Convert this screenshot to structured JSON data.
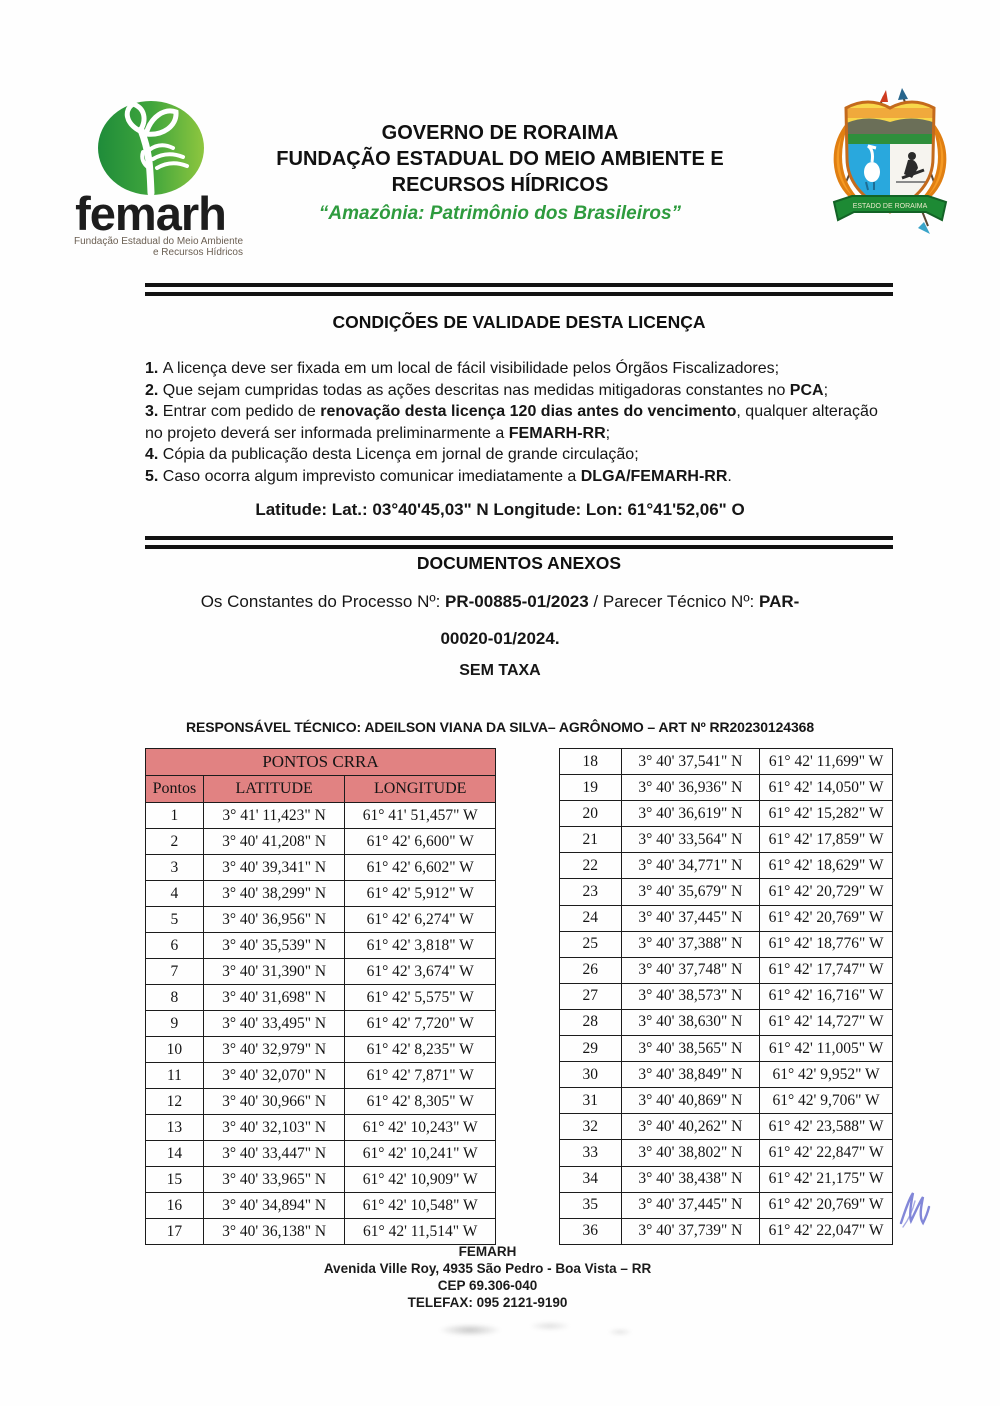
{
  "header": {
    "logo": {
      "wordmark": "femarh",
      "subtitle_line1": "Fundação Estadual do Meio Ambiente",
      "subtitle_line2": "e Recursos Hídricos"
    },
    "org_lines": {
      "line1": "GOVERNO DE RORAIMA",
      "line2": "FUNDAÇÃO ESTADUAL DO MEIO AMBIENTE E",
      "line3": "RECURSOS HÍDRICOS"
    },
    "motto": "“Amazônia: Patrimônio dos Brasileiros”",
    "coat_of_arms_banner": "ESTADO DE RORAIMA"
  },
  "conditions": {
    "title": "CONDIÇÕES DE VALIDADE DESTA LICENÇA",
    "items": [
      {
        "num": "1.",
        "segments": [
          {
            "t": "A licença deve ser fixada em um local de fácil visibilidade pelos Órgãos Fiscalizadores;",
            "b": false
          }
        ]
      },
      {
        "num": "2.",
        "segments": [
          {
            "t": "Que sejam cumpridas todas as ações descritas nas medidas mitigadoras constantes no ",
            "b": false
          },
          {
            "t": "PCA",
            "b": true
          },
          {
            "t": ";",
            "b": false
          }
        ]
      },
      {
        "num": "3.",
        "segments": [
          {
            "t": "Entrar com pedido de ",
            "b": false
          },
          {
            "t": "renovação desta licença 120 dias antes do vencimento",
            "b": true
          },
          {
            "t": ", qualquer alteração no projeto deverá ser informada preliminarmente a ",
            "b": false
          },
          {
            "t": "FEMARH-RR",
            "b": true
          },
          {
            "t": ";",
            "b": false
          }
        ]
      },
      {
        "num": "4.",
        "segments": [
          {
            "t": "Cópia da publicação desta Licença em jornal de grande circulação;",
            "b": false
          }
        ]
      },
      {
        "num": "5.",
        "segments": [
          {
            "t": "Caso ocorra algum imprevisto comunicar imediatamente a ",
            "b": false
          },
          {
            "t": "DLGA/FEMARH-RR",
            "b": true
          },
          {
            "t": ".",
            "b": false
          }
        ]
      }
    ],
    "coordinates_line": "Latitude:  Lat.: 03°40'45,03\" N Longitude: Lon: 61°41'52,06\" O"
  },
  "documents": {
    "title": "DOCUMENTOS ANEXOS",
    "process_line1": [
      {
        "t": "Os Constantes do Processo Nº: ",
        "b": false
      },
      {
        "t": "PR-00885-01/2023",
        "b": true
      },
      {
        "t": " / Parecer Técnico Nº: ",
        "b": false
      },
      {
        "t": "PAR-",
        "b": true
      }
    ],
    "process_line2": "00020-01/2024.",
    "tax_note": "SEM TAXA",
    "technician_line": "RESPONSÁVEL TÉCNICO: ADEILSON VIANA DA SILVA– AGRÔNOMO – ART Nº RR20230124368"
  },
  "points_table": {
    "title": "PONTOS CRRA",
    "headers": {
      "col1": "Pontos",
      "col2": "LATITUDE",
      "col3": "LONGITUDE"
    },
    "header_bg": "#e18282",
    "left_count": 17,
    "rows": [
      [
        "1",
        "3° 41' 11,423\" N",
        "61° 41' 51,457\" W"
      ],
      [
        "2",
        "3° 40' 41,208\" N",
        "61° 42' 6,600\" W"
      ],
      [
        "3",
        "3° 40' 39,341\" N",
        "61° 42' 6,602\" W"
      ],
      [
        "4",
        "3° 40' 38,299\" N",
        "61° 42' 5,912\" W"
      ],
      [
        "5",
        "3° 40' 36,956\" N",
        "61° 42' 6,274\" W"
      ],
      [
        "6",
        "3° 40' 35,539\" N",
        "61° 42' 3,818\" W"
      ],
      [
        "7",
        "3° 40' 31,390\" N",
        "61° 42' 3,674\" W"
      ],
      [
        "8",
        "3° 40' 31,698\" N",
        "61° 42' 5,575\" W"
      ],
      [
        "9",
        "3° 40' 33,495\" N",
        "61° 42' 7,720\" W"
      ],
      [
        "10",
        "3° 40' 32,979\" N",
        "61° 42' 8,235\" W"
      ],
      [
        "11",
        "3° 40' 32,070\" N",
        "61° 42' 7,871\" W"
      ],
      [
        "12",
        "3° 40' 30,966\" N",
        "61° 42' 8,305\" W"
      ],
      [
        "13",
        "3° 40' 32,103\" N",
        "61° 42' 10,243\" W"
      ],
      [
        "14",
        "3° 40' 33,447\" N",
        "61° 42' 10,241\" W"
      ],
      [
        "15",
        "3° 40' 33,965\" N",
        "61° 42' 10,909\" W"
      ],
      [
        "16",
        "3° 40' 34,894\" N",
        "61° 42' 10,548\" W"
      ],
      [
        "17",
        "3° 40' 36,138\" N",
        "61° 42' 11,514\" W"
      ],
      [
        "18",
        "3° 40' 37,541\" N",
        "61° 42' 11,699\" W"
      ],
      [
        "19",
        "3° 40' 36,936\" N",
        "61° 42' 14,050\" W"
      ],
      [
        "20",
        "3° 40' 36,619\" N",
        "61° 42' 15,282\" W"
      ],
      [
        "21",
        "3° 40' 33,564\" N",
        "61° 42' 17,859\" W"
      ],
      [
        "22",
        "3° 40' 34,771\" N",
        "61° 42' 18,629\" W"
      ],
      [
        "23",
        "3° 40' 35,679\" N",
        "61° 42' 20,729\" W"
      ],
      [
        "24",
        "3° 40' 37,445\" N",
        "61° 42' 20,769\" W"
      ],
      [
        "25",
        "3° 40' 37,388\" N",
        "61° 42' 18,776\" W"
      ],
      [
        "26",
        "3° 40' 37,748\" N",
        "61° 42' 17,747\" W"
      ],
      [
        "27",
        "3° 40' 38,573\" N",
        "61° 42' 16,716\" W"
      ],
      [
        "28",
        "3° 40' 38,630\" N",
        "61° 42' 14,727\" W"
      ],
      [
        "29",
        "3° 40' 38,565\" N",
        "61° 42' 11,005\" W"
      ],
      [
        "30",
        "3° 40' 38,849\" N",
        "61° 42' 9,952\" W"
      ],
      [
        "31",
        "3° 40' 40,869\" N",
        "61° 42' 9,706\" W"
      ],
      [
        "32",
        "3° 40' 40,262\" N",
        "61° 42' 23,588\" W"
      ],
      [
        "33",
        "3° 40' 38,802\" N",
        "61° 42' 22,847\" W"
      ],
      [
        "34",
        "3° 40' 38,438\" N",
        "61° 42' 21,175\" W"
      ],
      [
        "35",
        "3° 40' 37,445\" N",
        "61° 42' 20,769\" W"
      ],
      [
        "36",
        "3° 40' 37,739\" N",
        "61° 42' 22,047\" W"
      ]
    ]
  },
  "footer": {
    "line1": "FEMARH",
    "line2": "Avenida Ville Roy, 4935 São Pedro - Boa Vista – RR",
    "line3": "CEP 69.306-040",
    "line4": "TELEFAX: 095 2121-9190"
  },
  "colors": {
    "motto_green": "#2e9b3e",
    "table_header_pink": "#e18282",
    "ink_blue": "#8287d8",
    "logo_green_dark": "#1f8c3a",
    "logo_green_light": "#8ec63f"
  }
}
